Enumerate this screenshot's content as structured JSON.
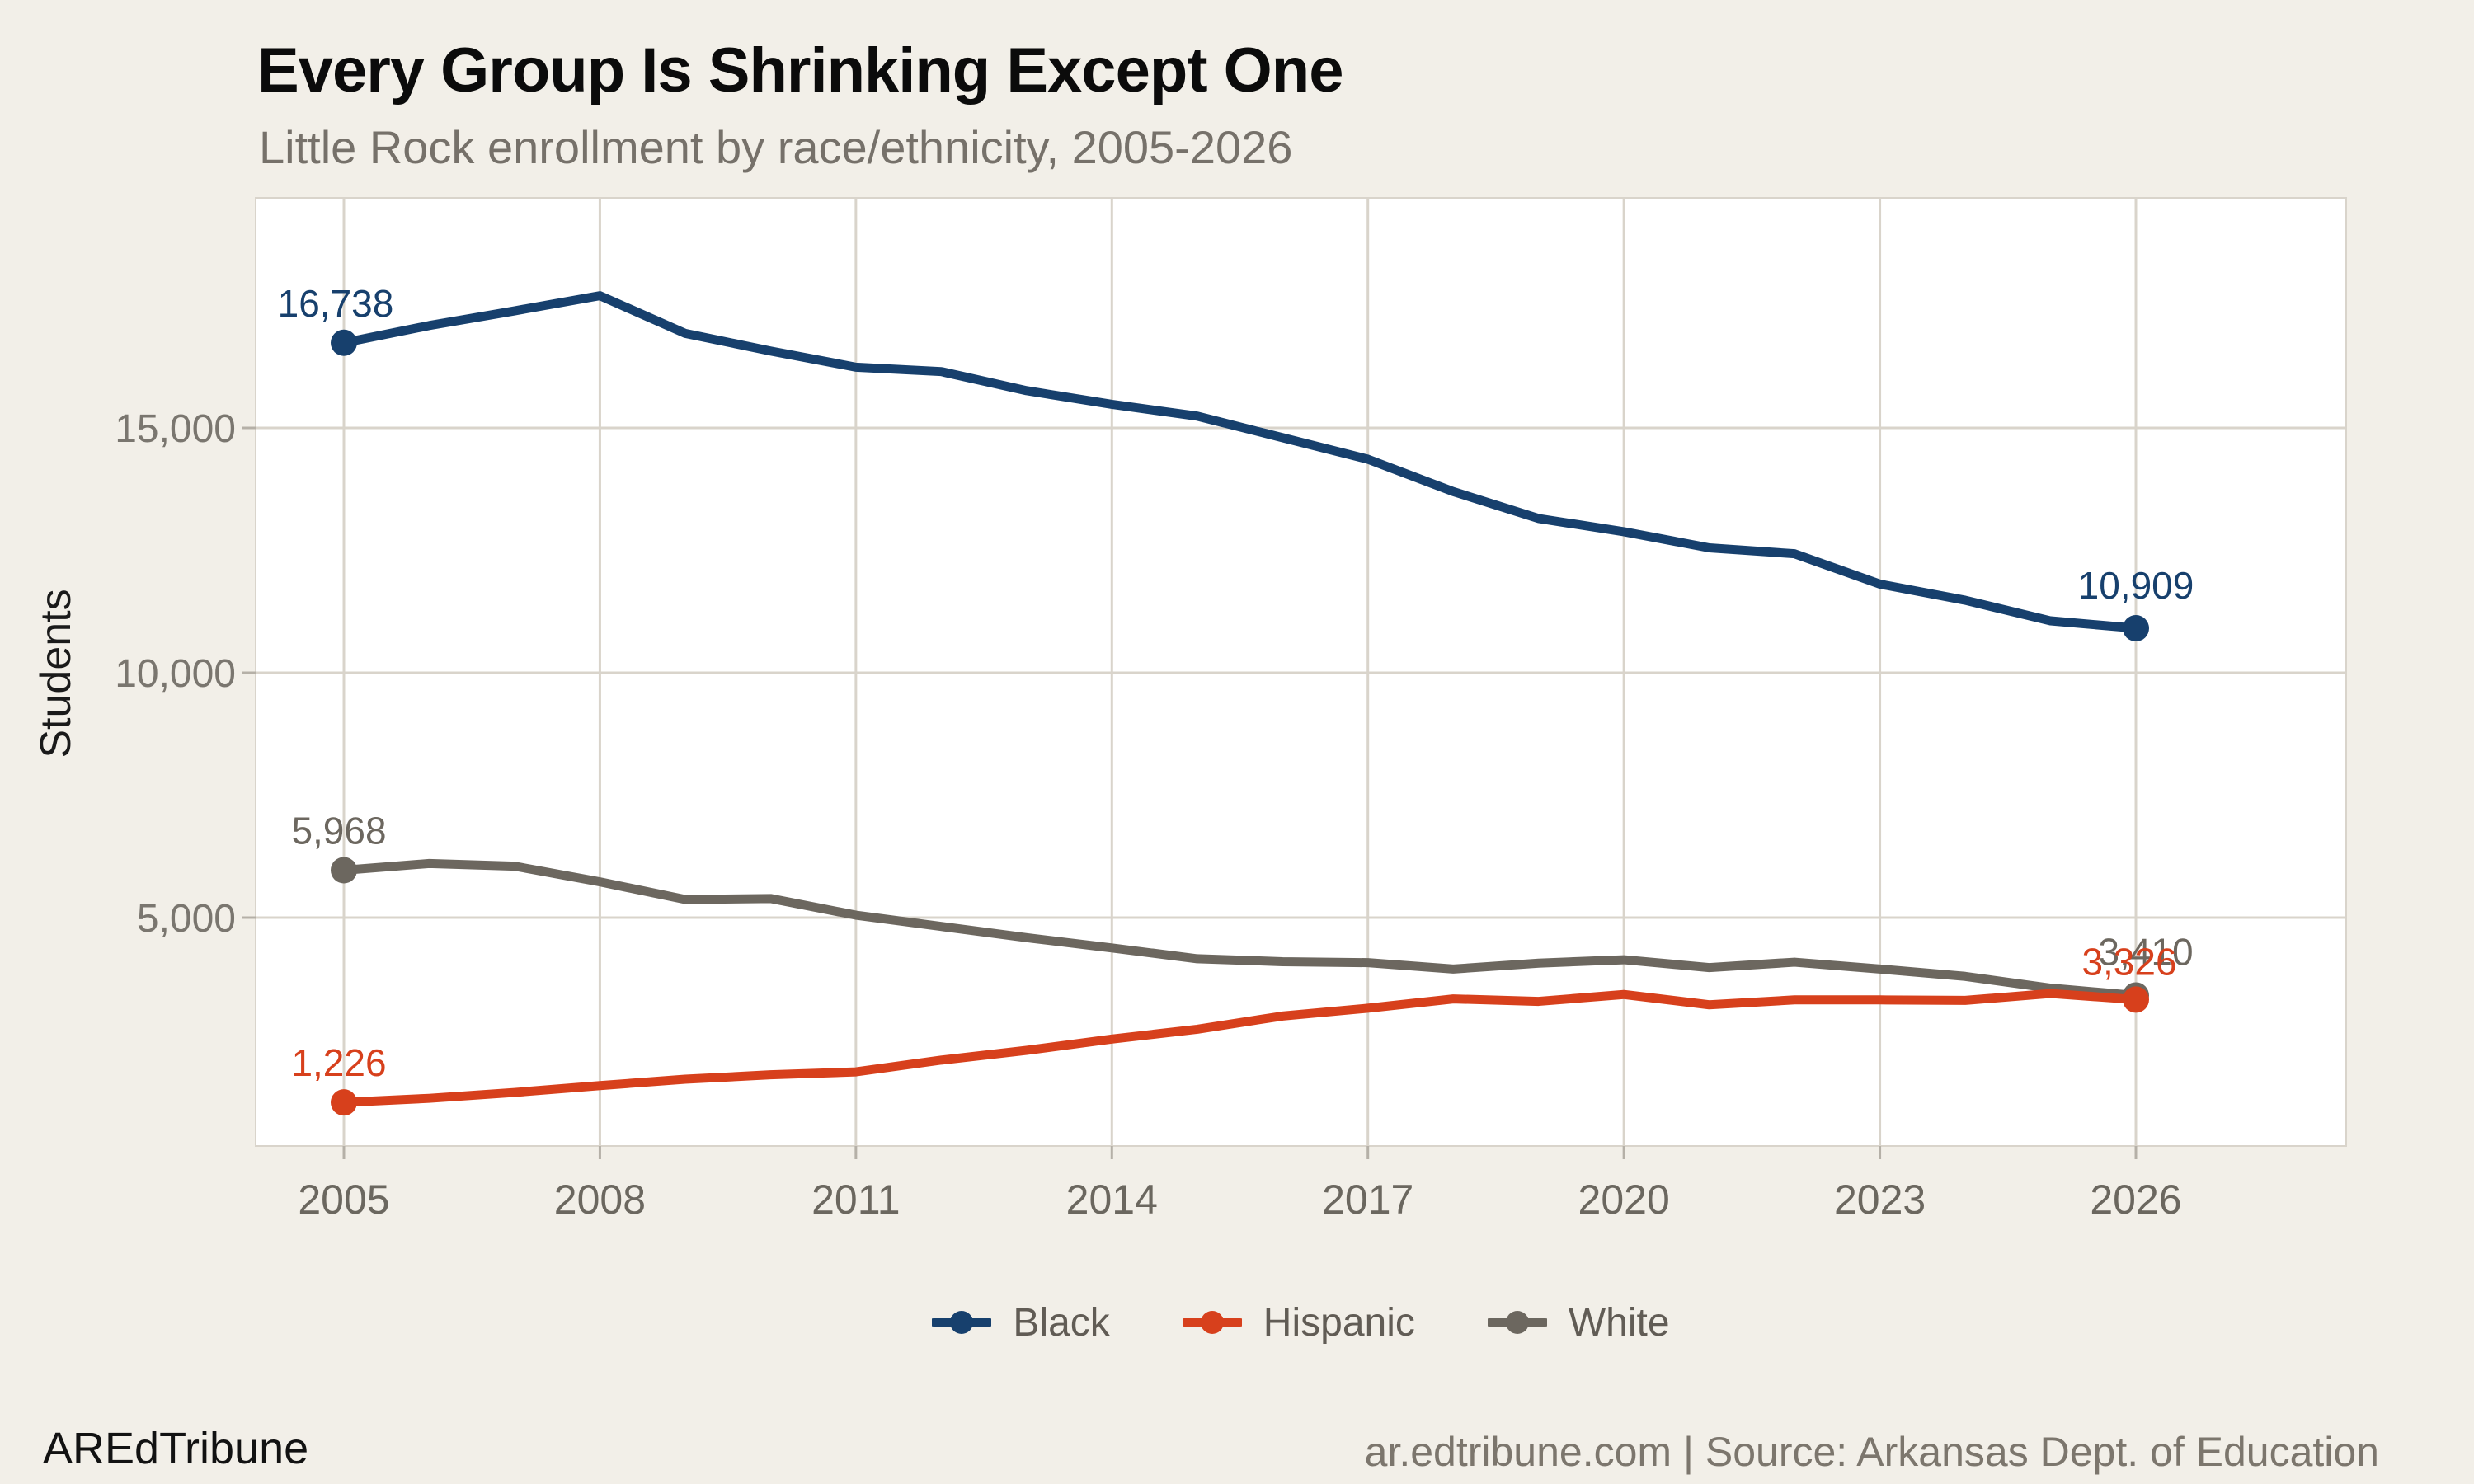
{
  "chart_data": {
    "type": "line",
    "title": "Every Group Is Shrinking Except One",
    "subtitle": "Little Rock enrollment by race/ethnicity, 2005-2026",
    "ylabel": "Students",
    "xlabel": "",
    "grid": true,
    "legend_position": "bottom-center",
    "xlim": [
      2004,
      2028.5
    ],
    "ylim": [
      300,
      19700
    ],
    "x": [
      2005,
      2006,
      2007,
      2008,
      2009,
      2010,
      2011,
      2012,
      2013,
      2014,
      2015,
      2016,
      2017,
      2018,
      2019,
      2020,
      2021,
      2022,
      2023,
      2024,
      2025,
      2026
    ],
    "x_ticks": [
      2005,
      2008,
      2011,
      2014,
      2017,
      2020,
      2023,
      2026
    ],
    "x_tick_labels": [
      "2005",
      "2008",
      "2011",
      "2014",
      "2017",
      "2020",
      "2023",
      "2026"
    ],
    "y_ticks": [
      5000,
      10000,
      15000
    ],
    "y_tick_labels": [
      "5,000",
      "10,000",
      "15,000"
    ],
    "series": [
      {
        "name": "Black",
        "color": "#17406d",
        "values": [
          16738,
          17090,
          17390,
          17700,
          16930,
          16570,
          16240,
          16150,
          15760,
          15480,
          15240,
          14800,
          14360,
          13700,
          13150,
          12880,
          12550,
          12430,
          11810,
          11480,
          11060,
          10909
        ],
        "start_label": "16,738",
        "end_label": "10,909"
      },
      {
        "name": "Hispanic",
        "color": "#d7401c",
        "values": [
          1226,
          1310,
          1430,
          1570,
          1700,
          1790,
          1850,
          2090,
          2290,
          2520,
          2720,
          2990,
          3150,
          3340,
          3290,
          3430,
          3220,
          3320,
          3320,
          3310,
          3450,
          3326
        ],
        "start_label": "1,226",
        "end_label": "3,326"
      },
      {
        "name": "White",
        "color": "#6c675f",
        "values": [
          5968,
          6105,
          6050,
          5730,
          5370,
          5390,
          5050,
          4820,
          4590,
          4380,
          4160,
          4100,
          4080,
          3950,
          4070,
          4140,
          3980,
          4090,
          3950,
          3800,
          3560,
          3410
        ],
        "start_label": "5,968",
        "end_label": "3,410"
      }
    ]
  },
  "footer": {
    "brand": "AREdTribune",
    "attribution": "ar.edtribune.com | Source: Arkansas Dept. of Education"
  }
}
